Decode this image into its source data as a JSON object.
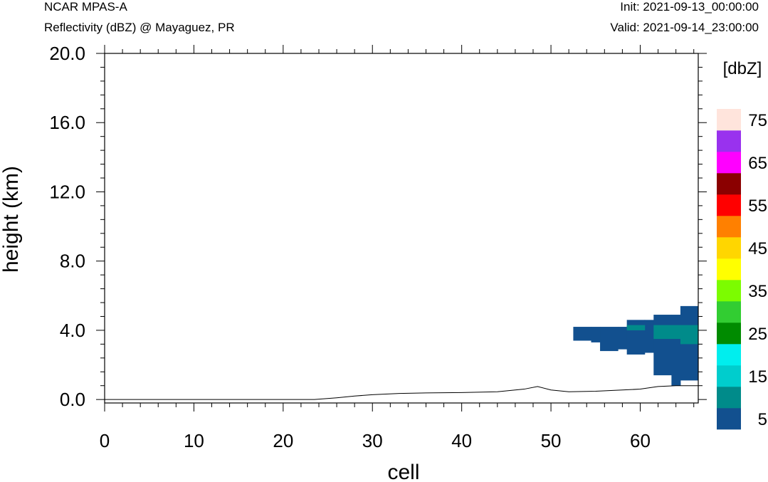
{
  "header": {
    "model": "NCAR MPAS-A",
    "field": "Reflectivity (dBZ) @ Mayaguez, PR",
    "init": "Init: 2021-09-13_00:00:00",
    "valid": "Valid: 2021-09-14_23:00:00"
  },
  "chart_data": {
    "type": "heatmap",
    "title": "Reflectivity (dBZ) @ Mayaguez, PR",
    "xlabel": "cell",
    "ylabel": "height (km)",
    "xlim": [
      0,
      66.5
    ],
    "ylim": [
      -0.2,
      20.0
    ],
    "xticks": [
      0,
      10,
      20,
      30,
      40,
      50,
      60
    ],
    "xtick_labels": [
      "0",
      "10",
      "20",
      "30",
      "40",
      "50",
      "60"
    ],
    "yticks": [
      0.0,
      4.0,
      8.0,
      12.0,
      16.0,
      20.0
    ],
    "ytick_labels": [
      "0.0",
      "4.0",
      "8.0",
      "12.0",
      "16.0",
      "20.0"
    ],
    "grid": false,
    "terrain": {
      "x": [
        0,
        23.5,
        26,
        28,
        30,
        33,
        36,
        40,
        44,
        47,
        48.5,
        50,
        52,
        55,
        58,
        60,
        62,
        64,
        66.5
      ],
      "height": [
        0.0,
        0.0,
        0.1,
        0.2,
        0.28,
        0.35,
        0.38,
        0.4,
        0.45,
        0.6,
        0.75,
        0.55,
        0.45,
        0.48,
        0.55,
        0.6,
        0.75,
        0.8,
        0.8
      ]
    },
    "cells": [
      {
        "x0": 52.5,
        "x1": 54.5,
        "y0": 3.4,
        "y1": 4.2,
        "dbz": 5
      },
      {
        "x0": 54.5,
        "x1": 55.5,
        "y0": 3.3,
        "y1": 4.2,
        "dbz": 5
      },
      {
        "x0": 55.5,
        "x1": 57.5,
        "y0": 2.8,
        "y1": 4.2,
        "dbz": 5
      },
      {
        "x0": 57.5,
        "x1": 58.5,
        "y0": 2.9,
        "y1": 4.2,
        "dbz": 5
      },
      {
        "x0": 58.5,
        "x1": 60.5,
        "y0": 2.6,
        "y1": 4.6,
        "dbz": 5
      },
      {
        "x0": 60.5,
        "x1": 61.5,
        "y0": 2.7,
        "y1": 4.6,
        "dbz": 5
      },
      {
        "x0": 61.5,
        "x1": 63.5,
        "y0": 1.4,
        "y1": 4.9,
        "dbz": 5
      },
      {
        "x0": 63.5,
        "x1": 64.5,
        "y0": 0.8,
        "y1": 4.9,
        "dbz": 5
      },
      {
        "x0": 64.5,
        "x1": 66.5,
        "y0": 1.1,
        "y1": 5.4,
        "dbz": 5
      },
      {
        "x0": 58.5,
        "x1": 60.5,
        "y0": 4.0,
        "y1": 4.3,
        "dbz": 10
      },
      {
        "x0": 61.5,
        "x1": 64.5,
        "y0": 3.5,
        "y1": 4.3,
        "dbz": 10
      },
      {
        "x0": 64.5,
        "x1": 66.5,
        "y0": 3.2,
        "y1": 4.3,
        "dbz": 10
      }
    ],
    "colorbar": {
      "label": "[dbZ]",
      "levels": [
        5,
        10,
        15,
        20,
        25,
        30,
        35,
        40,
        45,
        50,
        55,
        60,
        65,
        70,
        75
      ],
      "tick_labels": [
        "5",
        "15",
        "25",
        "35",
        "45",
        "55",
        "65",
        "75"
      ],
      "colors": [
        "#12508f",
        "#008b8a",
        "#00cdcd",
        "#00eeee",
        "#008b00",
        "#32cd32",
        "#7cfc00",
        "#ffff00",
        "#ffd600",
        "#ff8000",
        "#ff0000",
        "#8b0000",
        "#ff00ff",
        "#9932ee",
        "#ffe4dc"
      ]
    }
  }
}
